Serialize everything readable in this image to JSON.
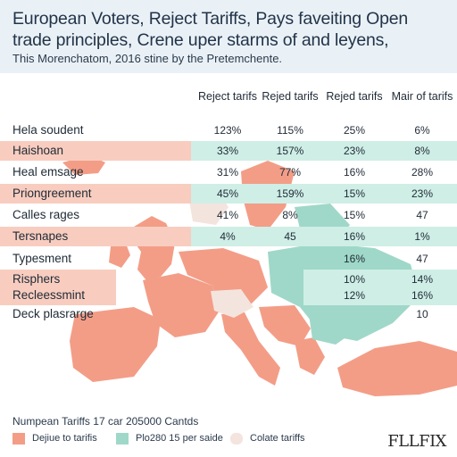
{
  "header": {
    "title": "European Voters, Reject Tariffs, Pays faveiting Open trade principles, Crene uper starms of and leyens,",
    "subtitle": "This Morenchatom, 2016 stine by the Pretemchente."
  },
  "colors": {
    "salmon": "#f39d87",
    "salmon_light": "#f8cdbf",
    "teal": "#9fd8c8",
    "teal_light": "#cfeee6",
    "pale": "#f4e4de",
    "header_bg": "#eaf1f6"
  },
  "table": {
    "columns": [
      "Reject tarifs",
      "Rejed tarifs",
      "Rejed tarifs",
      "Mair of tarifs"
    ],
    "rows": [
      {
        "label": "Hela soudent",
        "values": [
          "123%",
          "115%",
          "25%",
          "6%"
        ]
      },
      {
        "label": "Haishoan",
        "values": [
          "33%",
          "157%",
          "23%",
          "8%"
        ]
      },
      {
        "label": "Heal emsage",
        "values": [
          "31%",
          "77%",
          "16%",
          "28%"
        ]
      },
      {
        "label": "Priongreement",
        "values": [
          "45%",
          "159%",
          "15%",
          "23%"
        ]
      },
      {
        "label": "Calles rages",
        "values": [
          "41%",
          "8%",
          "15%",
          "47"
        ]
      },
      {
        "label": "Tersnapes",
        "values": [
          "4%",
          "45",
          "16%",
          "1%"
        ]
      },
      {
        "label": "Typesment",
        "values": [
          "",
          "",
          "16%",
          "47"
        ]
      },
      {
        "label": "Risphers",
        "values": [
          "",
          "",
          "10%",
          "14%"
        ]
      },
      {
        "label": "Recleessmint",
        "values": [
          "",
          "",
          "12%",
          "16%"
        ]
      },
      {
        "label": "Deck plasrarge",
        "values": [
          "",
          "",
          "",
          "10"
        ]
      }
    ]
  },
  "legend": {
    "title": "Numpean Tariffs 17 car 205000 Cantds",
    "items": [
      {
        "label": "Dejiue to tarifis",
        "color": "#f39d87"
      },
      {
        "label": "Plo280 15 per saide",
        "color": "#9fd8c8"
      },
      {
        "label": "Colate tariffs",
        "color": "#f4e4de"
      }
    ]
  },
  "brand": {
    "logo": "FLLFIX"
  }
}
